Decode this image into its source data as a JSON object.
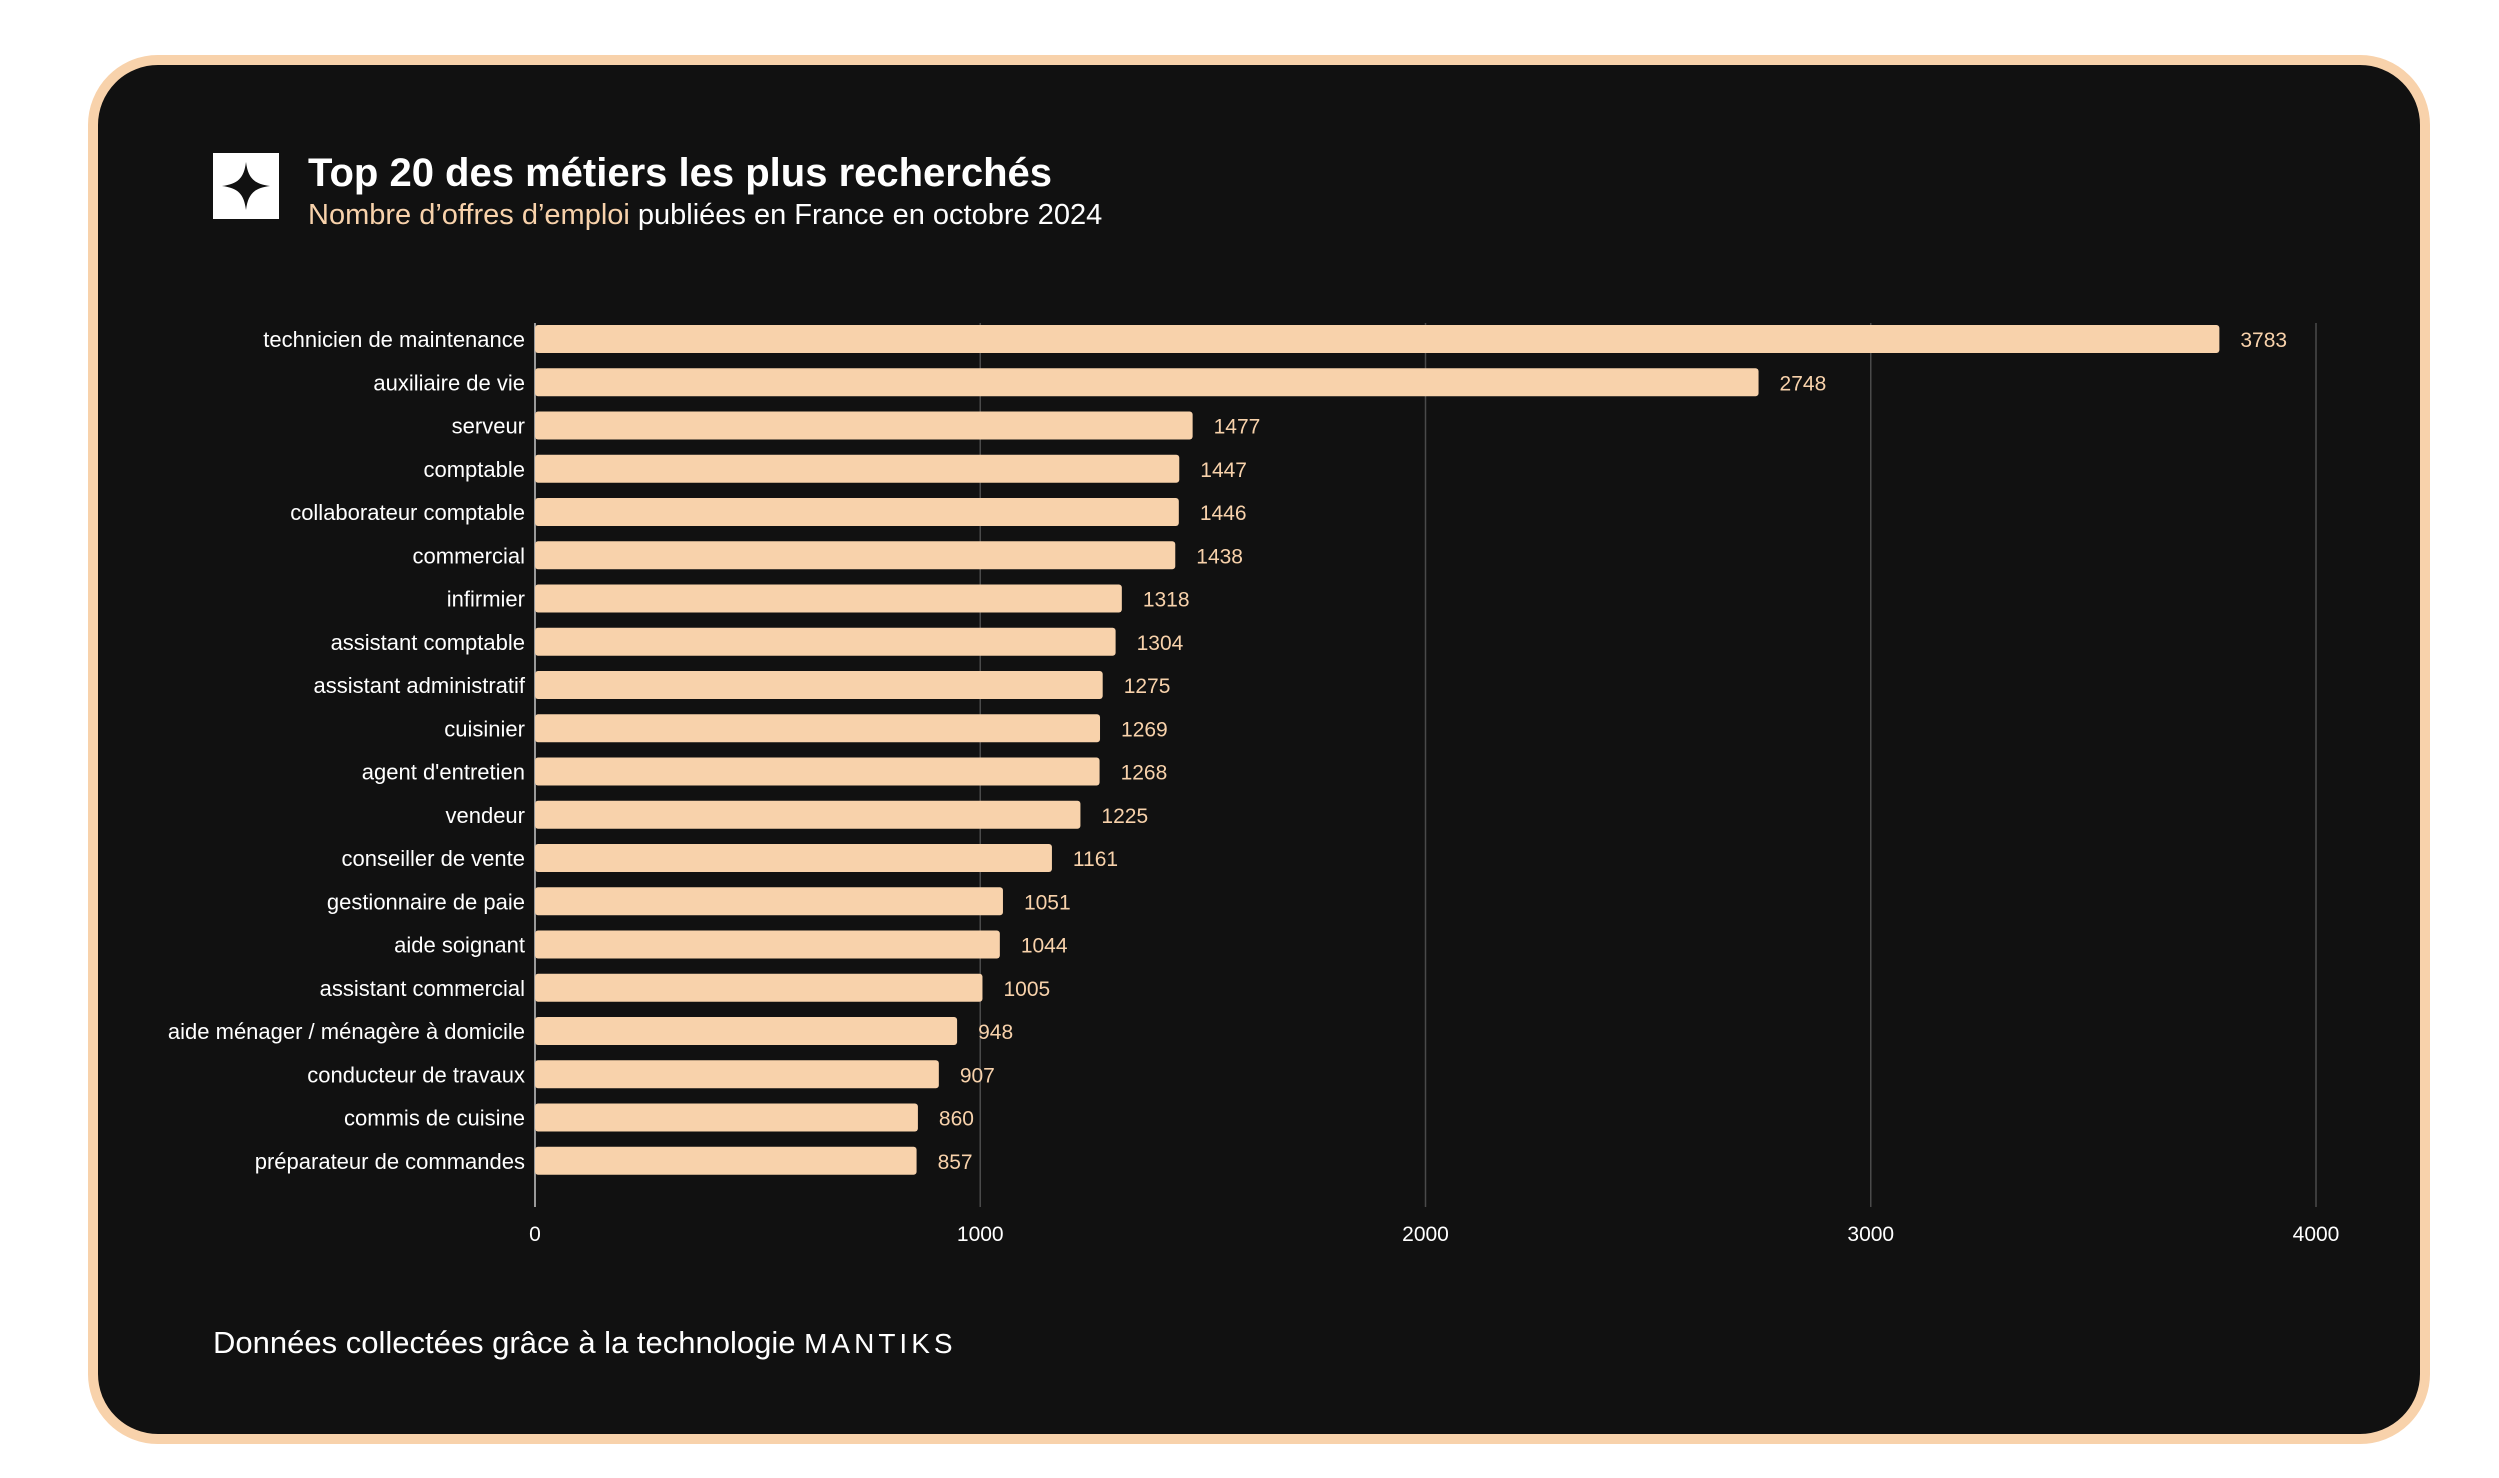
{
  "header": {
    "logo_icon": "four-point-star-icon",
    "title": "Top 20 des métiers les plus recherchés",
    "subtitle_accent": "Nombre d’offres d’emploi",
    "subtitle_rest": " publiées en France en octobre 2024"
  },
  "footer": {
    "text": "Données collectées grâce à la technologie ",
    "brand": "MANTIKS"
  },
  "colors": {
    "card_background": "#111111",
    "accent": "#f8d2ab",
    "text": "#ffffff",
    "grid": "#4a4a4a"
  },
  "chart_data": {
    "type": "bar",
    "orientation": "horizontal",
    "categories": [
      "technicien de maintenance",
      "auxiliaire de vie",
      "serveur",
      "comptable",
      "collaborateur comptable",
      "commercial",
      "infirmier",
      "assistant comptable",
      "assistant administratif",
      "cuisinier",
      "agent d'entretien",
      "vendeur",
      "conseiller de vente",
      "gestionnaire de paie",
      "aide soignant",
      "assistant commercial",
      "aide ménager / ménagère à domicile",
      "conducteur de travaux",
      "commis de cuisine",
      "préparateur de commandes"
    ],
    "values": [
      3783,
      2748,
      1477,
      1447,
      1446,
      1438,
      1318,
      1304,
      1275,
      1269,
      1268,
      1225,
      1161,
      1051,
      1044,
      1005,
      948,
      907,
      860,
      857
    ],
    "xlim": [
      0,
      4000
    ],
    "xticks": [
      0,
      1000,
      2000,
      3000,
      4000
    ],
    "grid": "vertical",
    "data_labels": true
  }
}
